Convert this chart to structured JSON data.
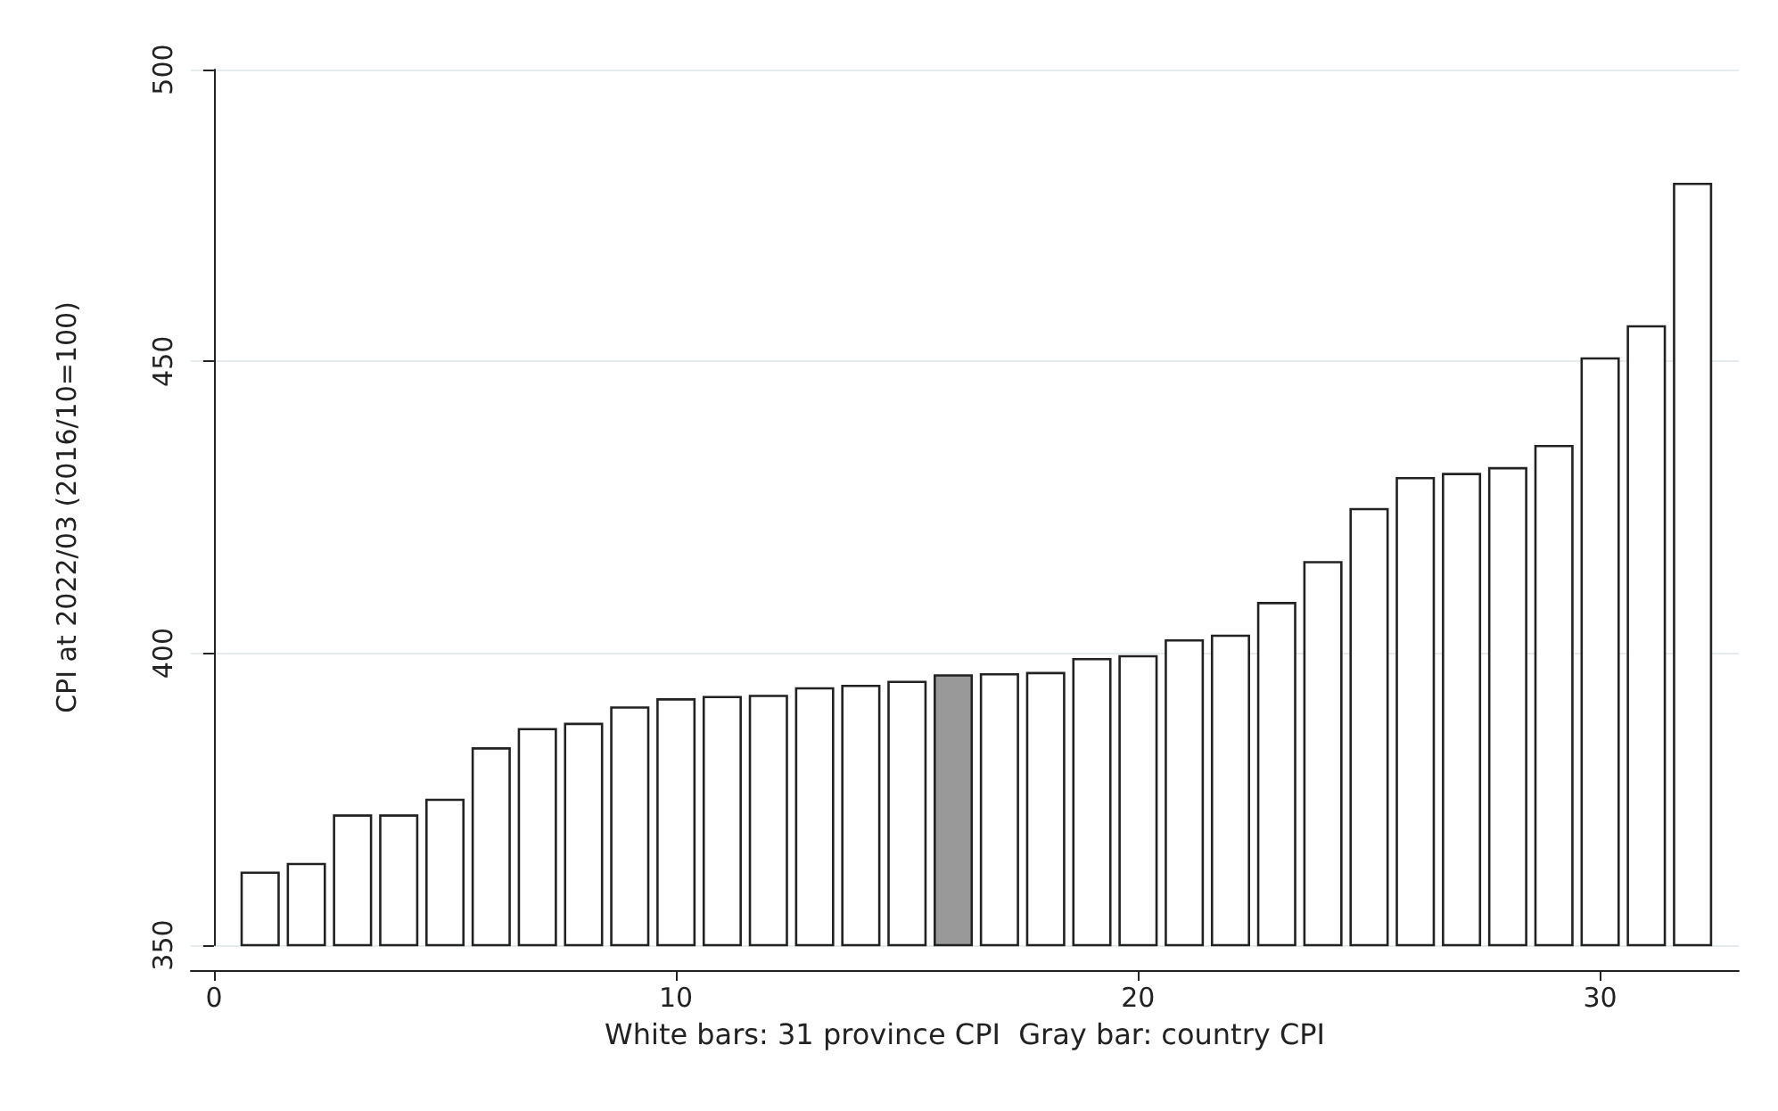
{
  "chart_data": {
    "type": "bar",
    "xlabel": "White bars: 31 province CPI  Gray bar: country CPI",
    "ylabel": "CPI at 2022/03 (2016/10=100)",
    "x": [
      1,
      2,
      3,
      4,
      5,
      6,
      7,
      8,
      9,
      10,
      11,
      12,
      13,
      14,
      15,
      16,
      17,
      18,
      19,
      20,
      21,
      22,
      23,
      24,
      25,
      26,
      27,
      28,
      29,
      30,
      31,
      32
    ],
    "values": [
      362.6,
      364.1,
      372.4,
      372.4,
      375.1,
      383.9,
      387.2,
      388.1,
      390.9,
      392.3,
      392.7,
      392.9,
      394.2,
      394.6,
      395.3,
      396.4,
      396.6,
      396.8,
      399.2,
      399.7,
      402.4,
      403.2,
      408.8,
      415.8,
      424.9,
      430.2,
      430.9,
      431.9,
      435.7,
      450.7,
      456.2,
      480.6
    ],
    "colors": [
      "#ffffff",
      "#ffffff",
      "#ffffff",
      "#ffffff",
      "#ffffff",
      "#ffffff",
      "#ffffff",
      "#ffffff",
      "#ffffff",
      "#ffffff",
      "#ffffff",
      "#ffffff",
      "#ffffff",
      "#ffffff",
      "#ffffff",
      "#999999",
      "#ffffff",
      "#ffffff",
      "#ffffff",
      "#ffffff",
      "#ffffff",
      "#ffffff",
      "#ffffff",
      "#ffffff",
      "#ffffff",
      "#ffffff",
      "#ffffff",
      "#ffffff",
      "#ffffff",
      "#ffffff",
      "#ffffff",
      "#ffffff"
    ],
    "xlim": [
      -0.5,
      33
    ],
    "xticks": [
      0,
      10,
      20,
      30
    ],
    "ylim": [
      350,
      500
    ],
    "yticks": [
      350,
      400,
      450,
      500
    ],
    "grid": "y"
  }
}
